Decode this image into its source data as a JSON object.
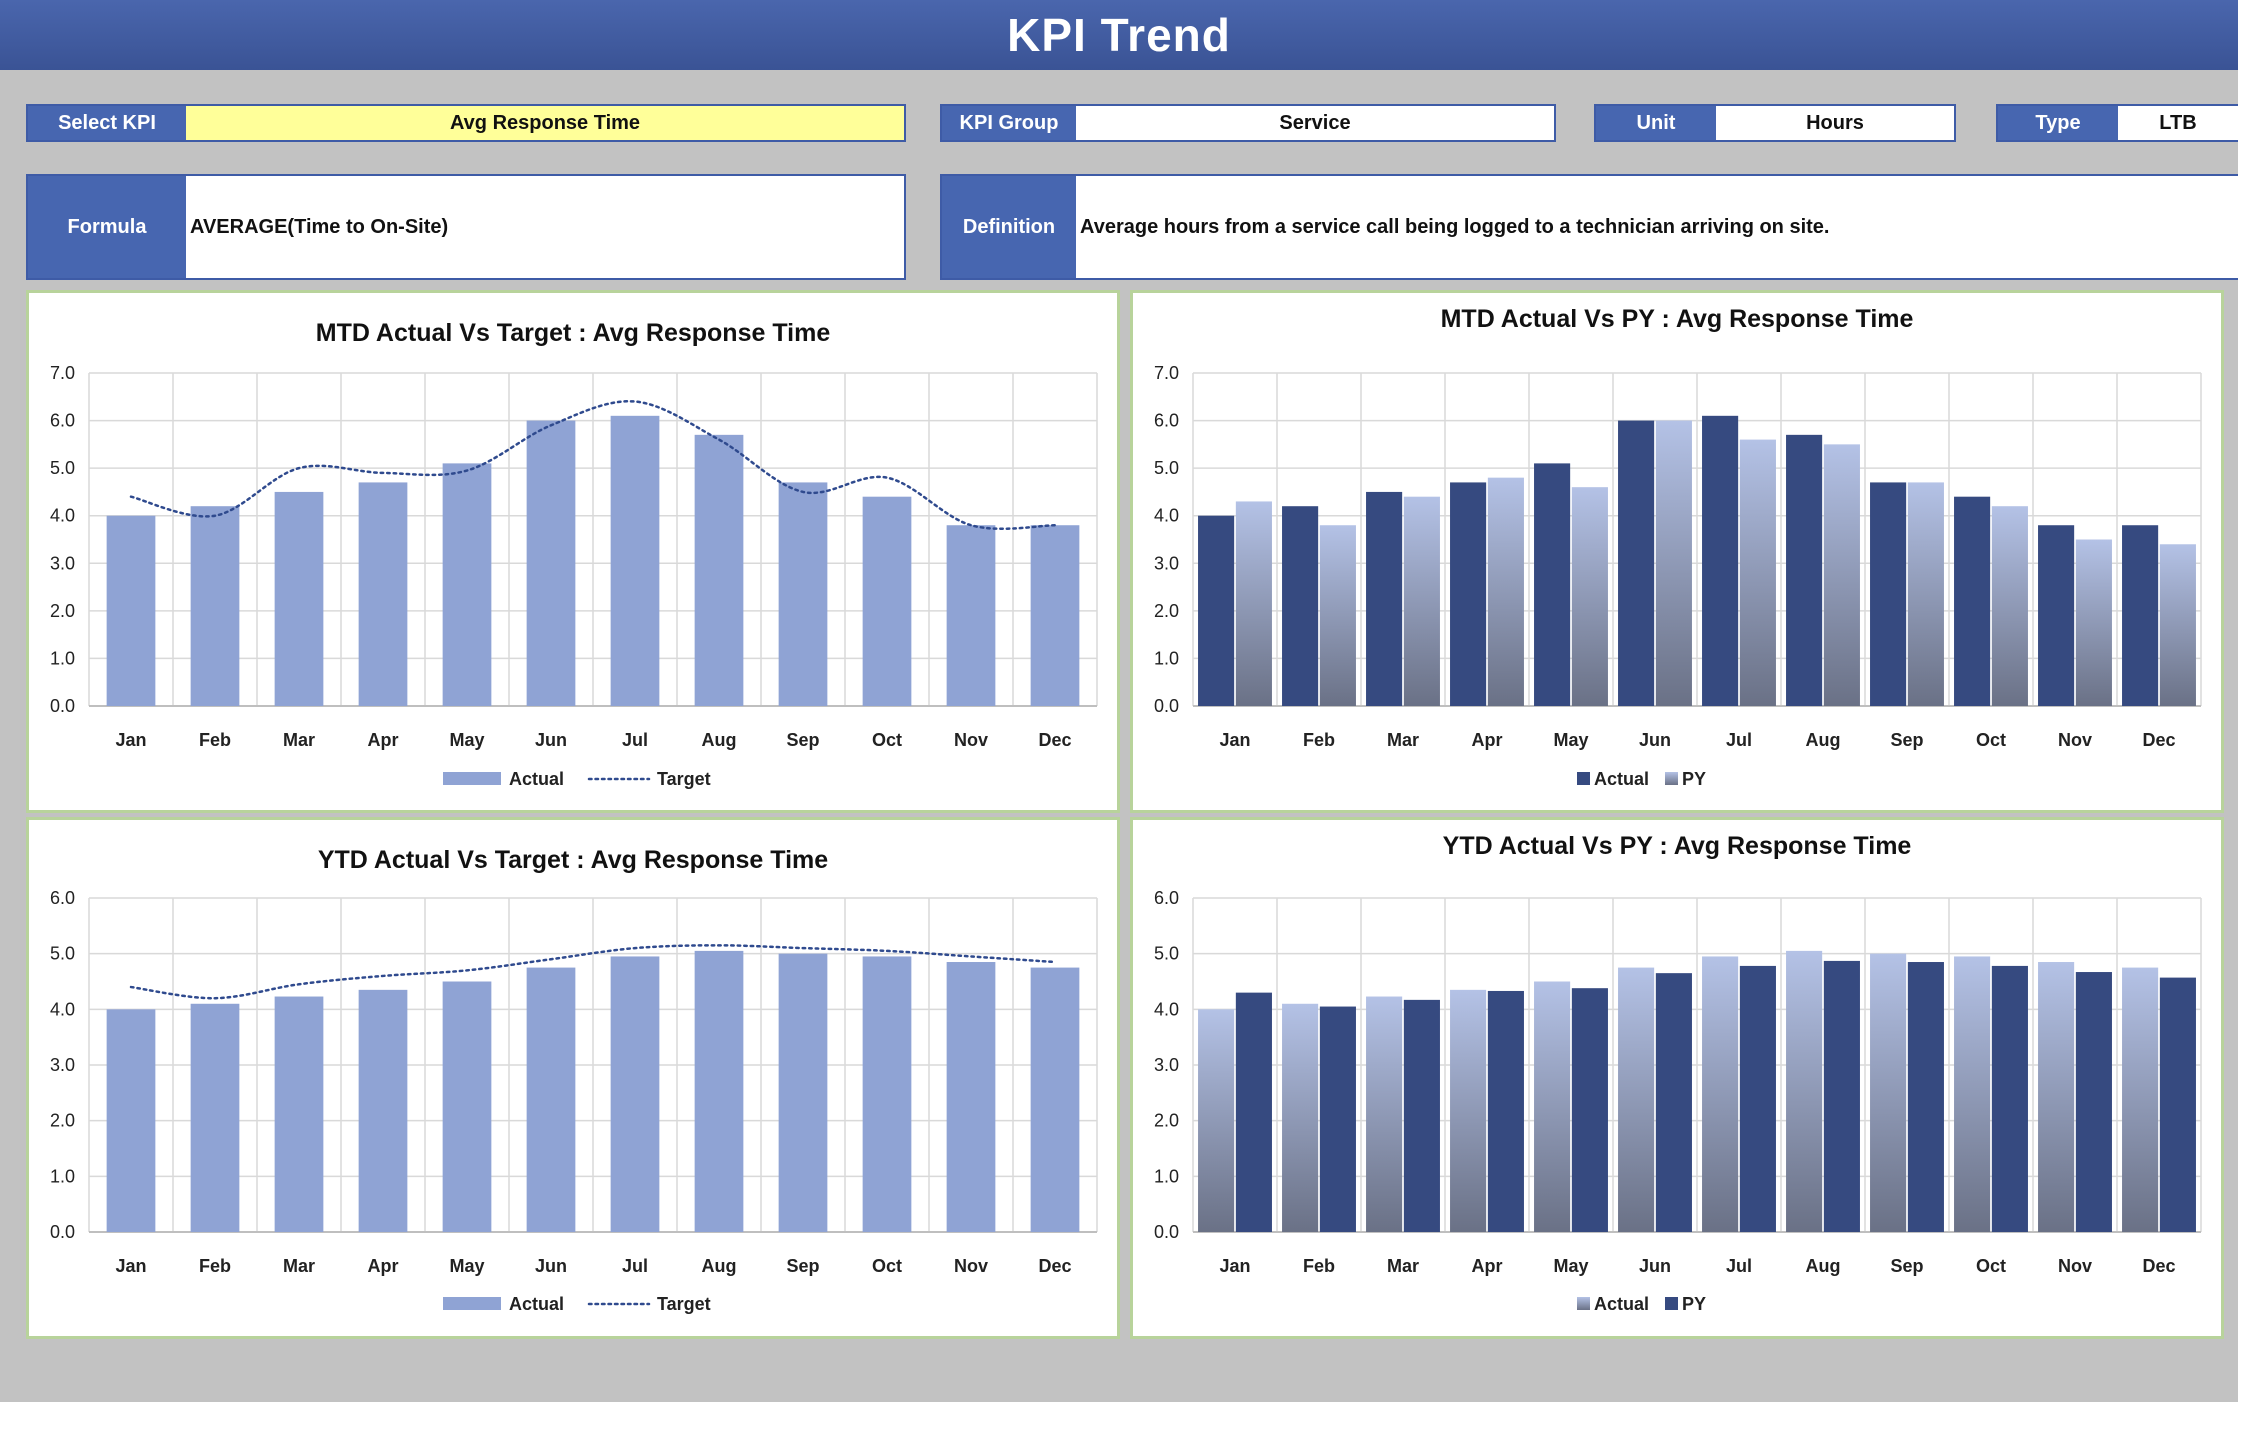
{
  "header": {
    "title": "KPI Trend"
  },
  "fields": {
    "select_kpi": {
      "label": "Select KPI",
      "value": "Avg Response Time"
    },
    "kpi_group": {
      "label": "KPI Group",
      "value": "Service"
    },
    "unit": {
      "label": "Unit",
      "value": "Hours"
    },
    "type": {
      "label": "Type",
      "value": "LTB"
    },
    "formula": {
      "label": "Formula",
      "value": "AVERAGE(Time to On-Site)"
    },
    "definition": {
      "label": "Definition",
      "value": "Average hours from a service call being logged to a technician arriving on site."
    }
  },
  "colors": {
    "header": "#3f5aa3",
    "select_highlight": "#ffff99",
    "actual_light": "#8fa3d4",
    "actual_dark": "#364a80",
    "py_gradient_top": "#b4c2e6",
    "py_gradient_bottom": "#6a7186",
    "target_line": "#2f4a8e",
    "panel_border": "#b8d39b"
  },
  "chart_data": [
    {
      "type": "bar",
      "title": "MTD Actual Vs Target : Avg Response Time",
      "categories": [
        "Jan",
        "Feb",
        "Mar",
        "Apr",
        "May",
        "Jun",
        "Jul",
        "Aug",
        "Sep",
        "Oct",
        "Nov",
        "Dec"
      ],
      "series": [
        {
          "name": "Actual",
          "kind": "bar",
          "values": [
            4.0,
            4.2,
            4.5,
            4.7,
            5.1,
            6.0,
            6.1,
            5.7,
            4.7,
            4.4,
            3.8,
            3.8
          ]
        },
        {
          "name": "Target",
          "kind": "dotted-line",
          "values": [
            4.4,
            4.0,
            5.0,
            4.9,
            4.95,
            5.9,
            6.4,
            5.6,
            4.5,
            4.8,
            3.8,
            3.8
          ]
        }
      ],
      "ylim": [
        0,
        7
      ],
      "yticks": [
        "0.0",
        "1.0",
        "2.0",
        "3.0",
        "4.0",
        "5.0",
        "6.0",
        "7.0"
      ],
      "grid": true,
      "legend": "bottom"
    },
    {
      "type": "bar",
      "title": "MTD Actual Vs PY : Avg Response Time",
      "categories": [
        "Jan",
        "Feb",
        "Mar",
        "Apr",
        "May",
        "Jun",
        "Jul",
        "Aug",
        "Sep",
        "Oct",
        "Nov",
        "Dec"
      ],
      "series": [
        {
          "name": "Actual",
          "values": [
            4.0,
            4.2,
            4.5,
            4.7,
            5.1,
            6.0,
            6.1,
            5.7,
            4.7,
            4.4,
            3.8,
            3.8
          ]
        },
        {
          "name": "PY",
          "values": [
            4.3,
            3.8,
            4.4,
            4.8,
            4.6,
            6.0,
            5.6,
            5.5,
            4.7,
            4.2,
            3.5,
            3.4
          ]
        }
      ],
      "ylim": [
        0,
        7
      ],
      "yticks": [
        "0.0",
        "1.0",
        "2.0",
        "3.0",
        "4.0",
        "5.0",
        "6.0",
        "7.0"
      ],
      "grid": true,
      "legend": "bottom"
    },
    {
      "type": "bar",
      "title": "YTD Actual Vs Target : Avg Response Time",
      "categories": [
        "Jan",
        "Feb",
        "Mar",
        "Apr",
        "May",
        "Jun",
        "Jul",
        "Aug",
        "Sep",
        "Oct",
        "Nov",
        "Dec"
      ],
      "series": [
        {
          "name": "Actual",
          "kind": "bar",
          "values": [
            4.0,
            4.1,
            4.23,
            4.35,
            4.5,
            4.75,
            4.95,
            5.05,
            5.0,
            4.95,
            4.85,
            4.75
          ]
        },
        {
          "name": "Target",
          "kind": "dotted-line",
          "values": [
            4.4,
            4.2,
            4.45,
            4.6,
            4.7,
            4.9,
            5.1,
            5.15,
            5.1,
            5.05,
            4.95,
            4.85
          ]
        }
      ],
      "ylim": [
        0,
        6
      ],
      "yticks": [
        "0.0",
        "1.0",
        "2.0",
        "3.0",
        "4.0",
        "5.0",
        "6.0"
      ],
      "grid": true,
      "legend": "bottom"
    },
    {
      "type": "bar",
      "title": "YTD Actual Vs PY : Avg Response Time",
      "categories": [
        "Jan",
        "Feb",
        "Mar",
        "Apr",
        "May",
        "Jun",
        "Jul",
        "Aug",
        "Sep",
        "Oct",
        "Nov",
        "Dec"
      ],
      "series": [
        {
          "name": "Actual",
          "values": [
            4.0,
            4.1,
            4.23,
            4.35,
            4.5,
            4.75,
            4.95,
            5.05,
            5.0,
            4.95,
            4.85,
            4.75
          ]
        },
        {
          "name": "PY",
          "values": [
            4.3,
            4.05,
            4.17,
            4.33,
            4.38,
            4.65,
            4.78,
            4.87,
            4.85,
            4.78,
            4.67,
            4.57
          ]
        }
      ],
      "ylim": [
        0,
        6
      ],
      "yticks": [
        "0.0",
        "1.0",
        "2.0",
        "3.0",
        "4.0",
        "5.0",
        "6.0"
      ],
      "grid": true,
      "legend": "bottom"
    }
  ]
}
